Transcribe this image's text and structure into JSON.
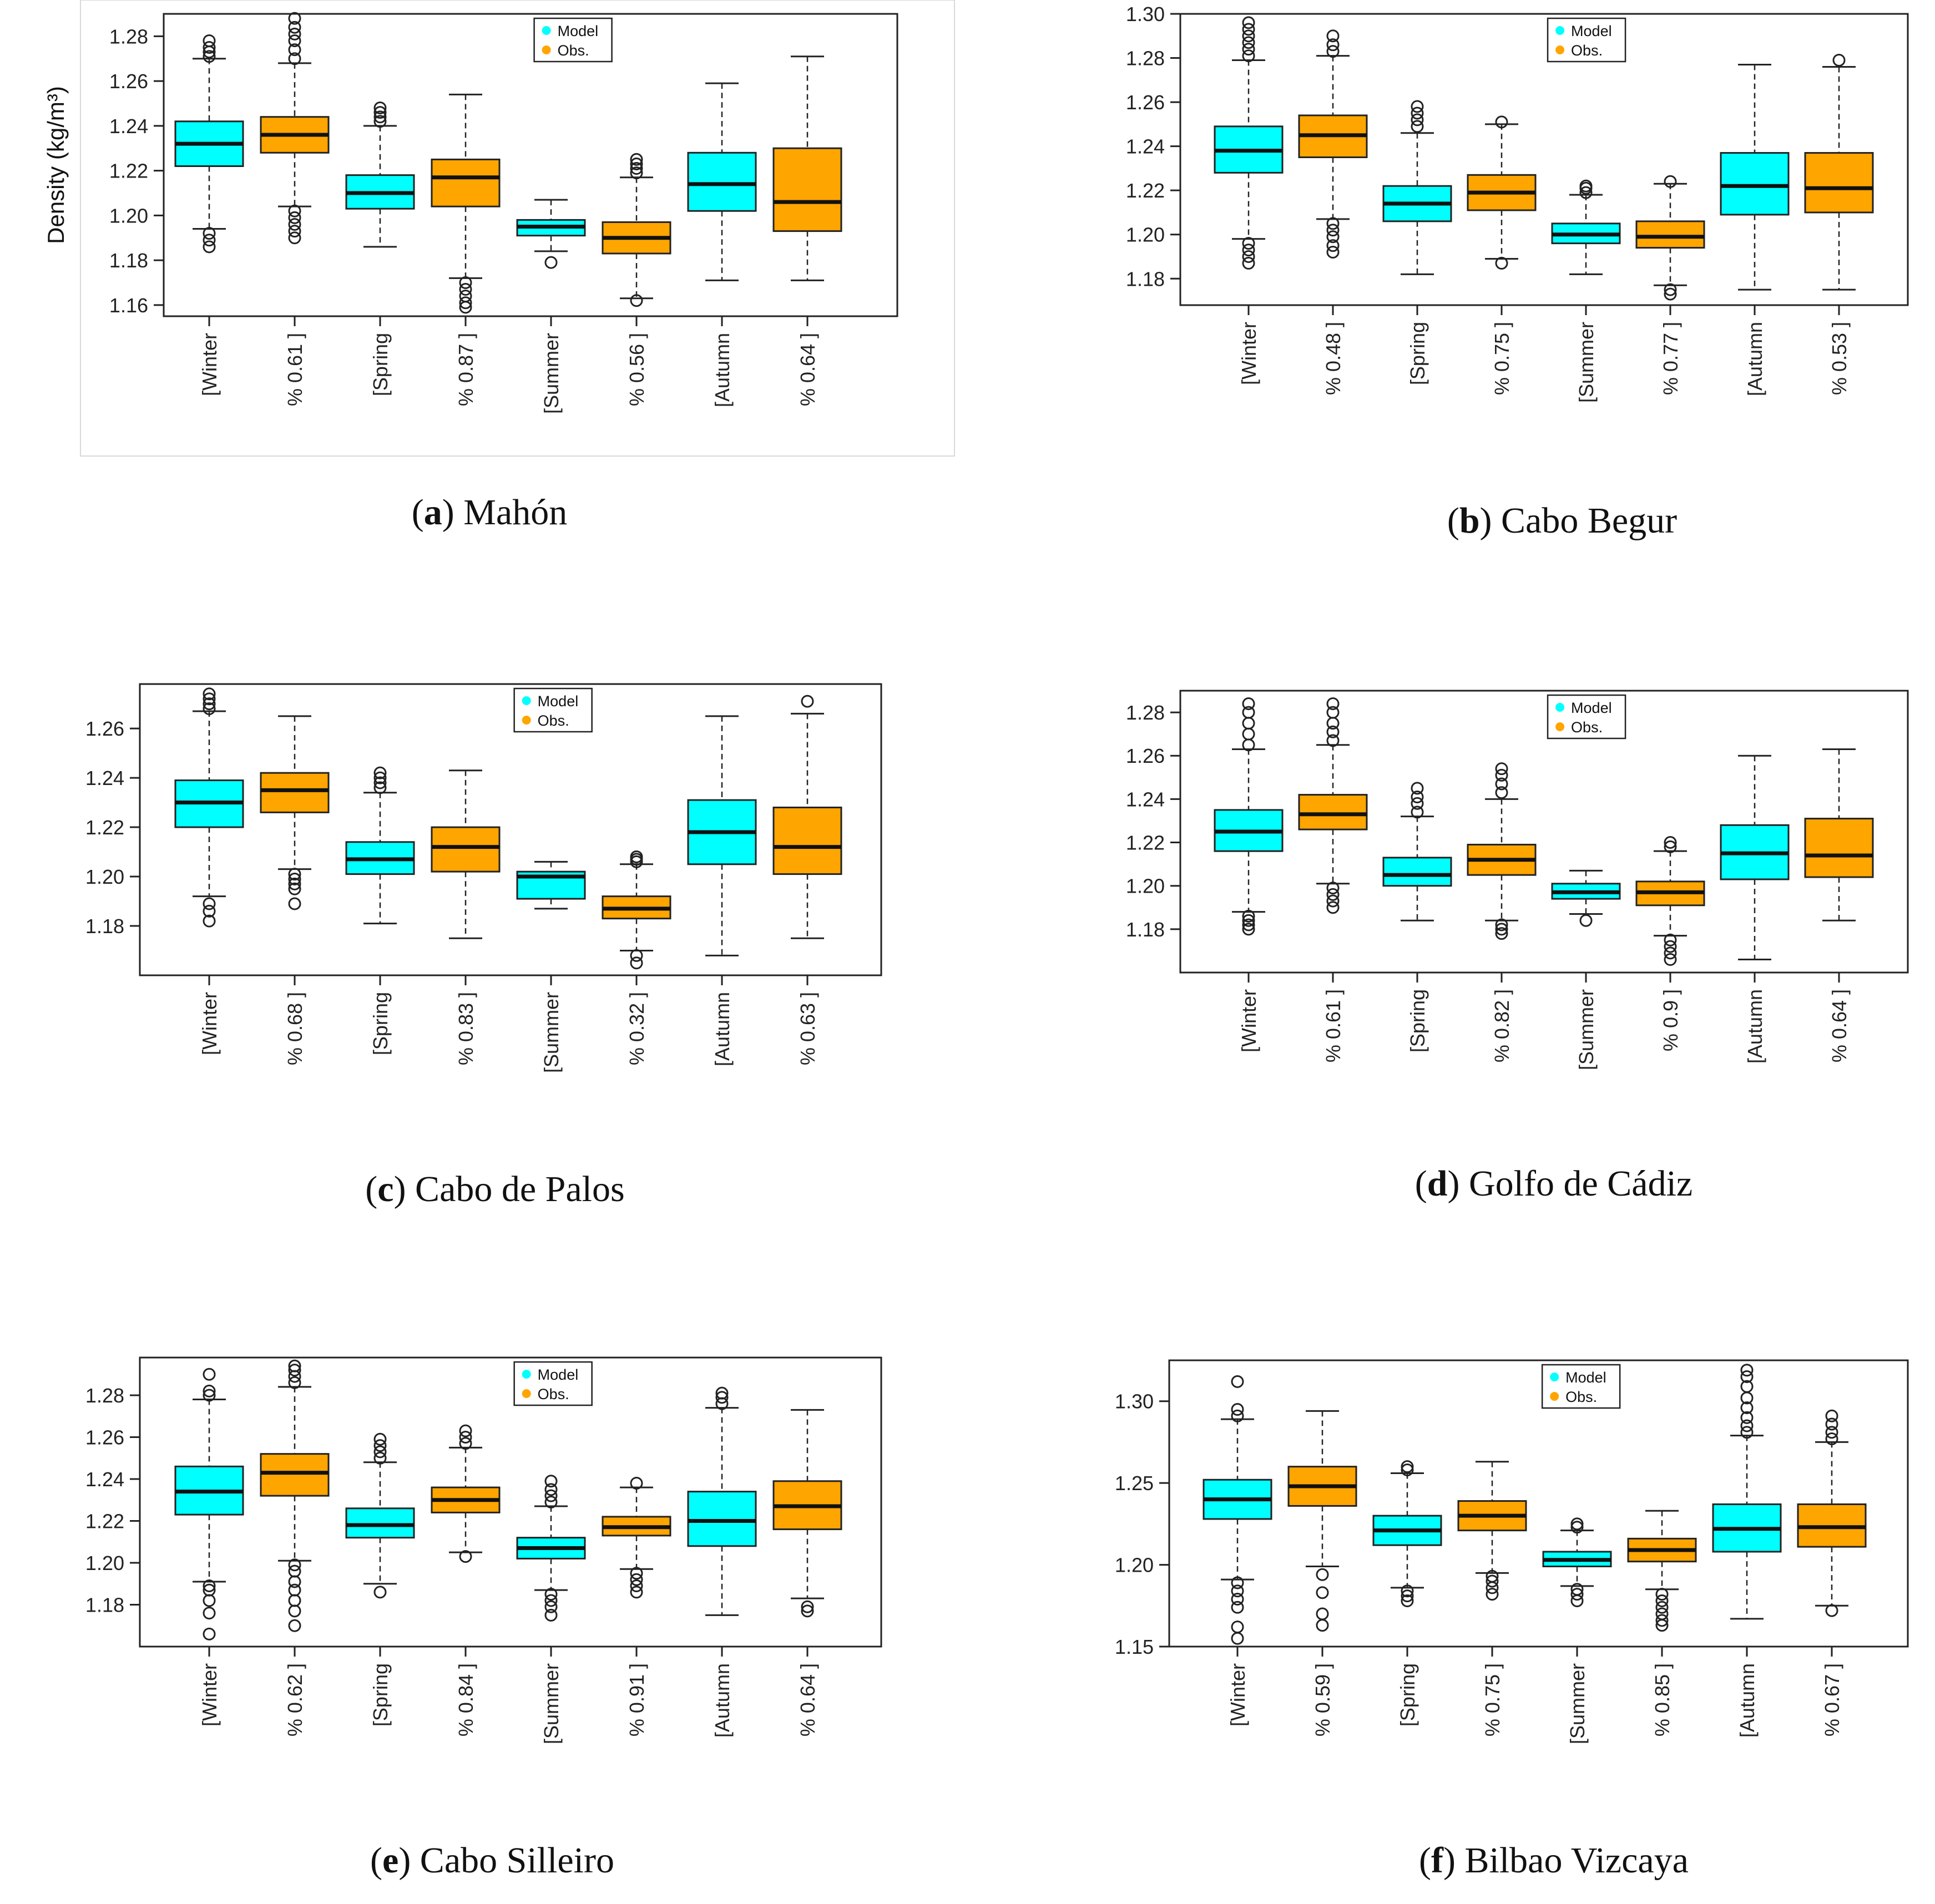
{
  "chart_data": [
    {
      "type": "boxplot",
      "panel_label": "a",
      "caption": "Mahón",
      "ylabel": "Density (kg/m³)",
      "yticks": [
        "1.16",
        "1.18",
        "1.20",
        "1.22",
        "1.24",
        "1.26",
        "1.28"
      ],
      "ylim": [
        1.155,
        1.29
      ],
      "categories": [
        "[Winter",
        "% 0.61 ]",
        "[Spring",
        "% 0.87 ]",
        "[Summer",
        "% 0.56 ]",
        "[Autumn",
        "% 0.64 ]"
      ],
      "legend": [
        "Model",
        "Obs."
      ],
      "colors": {
        "model": "#00FFFF",
        "obs": "#FFA500"
      },
      "boxes": [
        {
          "series": "Model",
          "min": 1.194,
          "q1": 1.222,
          "median": 1.232,
          "q3": 1.242,
          "max": 1.27,
          "outliers": [
            1.192,
            1.189,
            1.186,
            1.271,
            1.273,
            1.275,
            1.278
          ]
        },
        {
          "series": "Obs.",
          "min": 1.204,
          "q1": 1.228,
          "median": 1.236,
          "q3": 1.244,
          "max": 1.268,
          "outliers": [
            1.202,
            1.199,
            1.196,
            1.193,
            1.19,
            1.27,
            1.274,
            1.278,
            1.281,
            1.284,
            1.288
          ]
        },
        {
          "series": "Model",
          "min": 1.186,
          "q1": 1.203,
          "median": 1.21,
          "q3": 1.218,
          "max": 1.24,
          "outliers": [
            1.242,
            1.244,
            1.246,
            1.248
          ]
        },
        {
          "series": "Obs.",
          "min": 1.172,
          "q1": 1.204,
          "median": 1.217,
          "q3": 1.225,
          "max": 1.254,
          "outliers": [
            1.17,
            1.167,
            1.164,
            1.161,
            1.159
          ]
        },
        {
          "series": "Model",
          "min": 1.184,
          "q1": 1.191,
          "median": 1.195,
          "q3": 1.198,
          "max": 1.207,
          "outliers": [
            1.179
          ]
        },
        {
          "series": "Obs.",
          "min": 1.163,
          "q1": 1.183,
          "median": 1.19,
          "q3": 1.197,
          "max": 1.217,
          "outliers": [
            1.162,
            1.219,
            1.221,
            1.223,
            1.225
          ]
        },
        {
          "series": "Model",
          "min": 1.171,
          "q1": 1.202,
          "median": 1.214,
          "q3": 1.228,
          "max": 1.259,
          "outliers": []
        },
        {
          "series": "Obs.",
          "min": 1.171,
          "q1": 1.193,
          "median": 1.206,
          "q3": 1.23,
          "max": 1.271,
          "outliers": []
        }
      ]
    },
    {
      "type": "boxplot",
      "panel_label": "b",
      "caption": "Cabo Begur",
      "ylabel": "",
      "yticks": [
        "1.18",
        "1.20",
        "1.22",
        "1.24",
        "1.26",
        "1.28",
        "1.30"
      ],
      "ylim": [
        1.168,
        1.3
      ],
      "categories": [
        "[Winter",
        "% 0.48 ]",
        "[Spring",
        "% 0.75 ]",
        "[Summer",
        "% 0.77 ]",
        "[Autumn",
        "% 0.53 ]"
      ],
      "legend": [
        "Model",
        "Obs."
      ],
      "colors": {
        "model": "#00FFFF",
        "obs": "#FFA500"
      },
      "boxes": [
        {
          "series": "Model",
          "min": 1.198,
          "q1": 1.228,
          "median": 1.238,
          "q3": 1.249,
          "max": 1.279,
          "outliers": [
            1.196,
            1.193,
            1.19,
            1.187,
            1.281,
            1.284,
            1.287,
            1.29,
            1.293,
            1.296
          ]
        },
        {
          "series": "Obs.",
          "min": 1.207,
          "q1": 1.235,
          "median": 1.245,
          "q3": 1.254,
          "max": 1.281,
          "outliers": [
            1.205,
            1.202,
            1.199,
            1.195,
            1.192,
            1.283,
            1.286,
            1.29
          ]
        },
        {
          "series": "Model",
          "min": 1.182,
          "q1": 1.206,
          "median": 1.214,
          "q3": 1.222,
          "max": 1.246,
          "outliers": [
            1.249,
            1.252,
            1.255,
            1.258
          ]
        },
        {
          "series": "Obs.",
          "min": 1.189,
          "q1": 1.211,
          "median": 1.219,
          "q3": 1.227,
          "max": 1.25,
          "outliers": [
            1.187,
            1.251
          ]
        },
        {
          "series": "Model",
          "min": 1.182,
          "q1": 1.196,
          "median": 1.2,
          "q3": 1.205,
          "max": 1.218,
          "outliers": [
            1.219,
            1.221,
            1.222
          ]
        },
        {
          "series": "Obs.",
          "min": 1.177,
          "q1": 1.194,
          "median": 1.199,
          "q3": 1.206,
          "max": 1.223,
          "outliers": [
            1.175,
            1.173,
            1.224
          ]
        },
        {
          "series": "Model",
          "min": 1.175,
          "q1": 1.209,
          "median": 1.222,
          "q3": 1.237,
          "max": 1.277,
          "outliers": []
        },
        {
          "series": "Obs.",
          "min": 1.175,
          "q1": 1.21,
          "median": 1.221,
          "q3": 1.237,
          "max": 1.276,
          "outliers": [
            1.279
          ]
        }
      ]
    },
    {
      "type": "boxplot",
      "panel_label": "c",
      "caption": "Cabo de Palos",
      "ylabel": "",
      "yticks": [
        "1.18",
        "1.20",
        "1.22",
        "1.24",
        "1.26"
      ],
      "ylim": [
        1.16,
        1.278
      ],
      "categories": [
        "[Winter",
        "% 0.68 ]",
        "[Spring",
        "% 0.83 ]",
        "[Summer",
        "% 0.32 ]",
        "[Autumn",
        "% 0.63 ]"
      ],
      "legend": [
        "Model",
        "Obs."
      ],
      "colors": {
        "model": "#00FFFF",
        "obs": "#FFA500"
      },
      "boxes": [
        {
          "series": "Model",
          "min": 1.192,
          "q1": 1.22,
          "median": 1.23,
          "q3": 1.239,
          "max": 1.267,
          "outliers": [
            1.189,
            1.186,
            1.182,
            1.268,
            1.27,
            1.272,
            1.274
          ]
        },
        {
          "series": "Obs.",
          "min": 1.203,
          "q1": 1.226,
          "median": 1.235,
          "q3": 1.242,
          "max": 1.265,
          "outliers": [
            1.201,
            1.199,
            1.197,
            1.195,
            1.189
          ]
        },
        {
          "series": "Model",
          "min": 1.181,
          "q1": 1.201,
          "median": 1.207,
          "q3": 1.214,
          "max": 1.234,
          "outliers": [
            1.236,
            1.238,
            1.24,
            1.242
          ]
        },
        {
          "series": "Obs.",
          "min": 1.175,
          "q1": 1.202,
          "median": 1.212,
          "q3": 1.22,
          "max": 1.243,
          "outliers": []
        },
        {
          "series": "Model",
          "min": 1.187,
          "q1": 1.191,
          "median": 1.2,
          "q3": 1.202,
          "max": 1.206,
          "outliers": []
        },
        {
          "series": "Obs.",
          "min": 1.17,
          "q1": 1.183,
          "median": 1.187,
          "q3": 1.192,
          "max": 1.205,
          "outliers": [
            1.168,
            1.165,
            1.206,
            1.207,
            1.208
          ]
        },
        {
          "series": "Model",
          "min": 1.168,
          "q1": 1.205,
          "median": 1.218,
          "q3": 1.231,
          "max": 1.265,
          "outliers": []
        },
        {
          "series": "Obs.",
          "min": 1.175,
          "q1": 1.201,
          "median": 1.212,
          "q3": 1.228,
          "max": 1.266,
          "outliers": [
            1.271
          ]
        }
      ]
    },
    {
      "type": "boxplot",
      "panel_label": "d",
      "caption": "Golfo de Cádiz",
      "ylabel": "",
      "yticks": [
        "1.18",
        "1.20",
        "1.22",
        "1.24",
        "1.26",
        "1.28"
      ],
      "ylim": [
        1.16,
        1.29
      ],
      "categories": [
        "[Winter",
        "% 0.61 ]",
        "[Spring",
        "% 0.82 ]",
        "[Summer",
        "% 0.9 ]",
        "[Autumn",
        "% 0.64 ]"
      ],
      "legend": [
        "Model",
        "Obs."
      ],
      "colors": {
        "model": "#00FFFF",
        "obs": "#FFA500"
      },
      "boxes": [
        {
          "series": "Model",
          "min": 1.188,
          "q1": 1.216,
          "median": 1.225,
          "q3": 1.235,
          "max": 1.263,
          "outliers": [
            1.186,
            1.184,
            1.182,
            1.18,
            1.265,
            1.27,
            1.275,
            1.28,
            1.284
          ]
        },
        {
          "series": "Obs.",
          "min": 1.201,
          "q1": 1.226,
          "median": 1.233,
          "q3": 1.242,
          "max": 1.265,
          "outliers": [
            1.199,
            1.196,
            1.193,
            1.19,
            1.267,
            1.271,
            1.275,
            1.28,
            1.284
          ]
        },
        {
          "series": "Model",
          "min": 1.184,
          "q1": 1.2,
          "median": 1.205,
          "q3": 1.213,
          "max": 1.232,
          "outliers": [
            1.234,
            1.238,
            1.241,
            1.245
          ]
        },
        {
          "series": "Obs.",
          "min": 1.184,
          "q1": 1.205,
          "median": 1.212,
          "q3": 1.219,
          "max": 1.24,
          "outliers": [
            1.182,
            1.18,
            1.178,
            1.243,
            1.247,
            1.251,
            1.254
          ]
        },
        {
          "series": "Model",
          "min": 1.187,
          "q1": 1.194,
          "median": 1.197,
          "q3": 1.201,
          "max": 1.207,
          "outliers": [
            1.184
          ]
        },
        {
          "series": "Obs.",
          "min": 1.177,
          "q1": 1.191,
          "median": 1.197,
          "q3": 1.202,
          "max": 1.216,
          "outliers": [
            1.175,
            1.172,
            1.169,
            1.166,
            1.218,
            1.22
          ]
        },
        {
          "series": "Model",
          "min": 1.166,
          "q1": 1.203,
          "median": 1.215,
          "q3": 1.228,
          "max": 1.26,
          "outliers": []
        },
        {
          "series": "Obs.",
          "min": 1.184,
          "q1": 1.204,
          "median": 1.214,
          "q3": 1.231,
          "max": 1.263,
          "outliers": []
        }
      ]
    },
    {
      "type": "boxplot",
      "panel_label": "e",
      "caption": "Cabo Silleiro",
      "ylabel": "",
      "yticks": [
        "1.18",
        "1.20",
        "1.22",
        "1.24",
        "1.26",
        "1.28"
      ],
      "ylim": [
        1.16,
        1.298
      ],
      "categories": [
        "[Winter",
        "% 0.62 ]",
        "[Spring",
        "% 0.84 ]",
        "[Summer",
        "% 0.91 ]",
        "[Autumn",
        "% 0.64 ]"
      ],
      "legend": [
        "Model",
        "Obs."
      ],
      "colors": {
        "model": "#00FFFF",
        "obs": "#FFA500"
      },
      "boxes": [
        {
          "series": "Model",
          "min": 1.191,
          "q1": 1.223,
          "median": 1.234,
          "q3": 1.246,
          "max": 1.278,
          "outliers": [
            1.189,
            1.187,
            1.182,
            1.176,
            1.166,
            1.28,
            1.282,
            1.29
          ]
        },
        {
          "series": "Obs.",
          "min": 1.201,
          "q1": 1.232,
          "median": 1.243,
          "q3": 1.252,
          "max": 1.284,
          "outliers": [
            1.199,
            1.196,
            1.191,
            1.187,
            1.182,
            1.177,
            1.17,
            1.286,
            1.289,
            1.292,
            1.294
          ]
        },
        {
          "series": "Model",
          "min": 1.19,
          "q1": 1.212,
          "median": 1.218,
          "q3": 1.226,
          "max": 1.248,
          "outliers": [
            1.186,
            1.25,
            1.253,
            1.256,
            1.259
          ]
        },
        {
          "series": "Obs.",
          "min": 1.205,
          "q1": 1.224,
          "median": 1.23,
          "q3": 1.236,
          "max": 1.255,
          "outliers": [
            1.203,
            1.257,
            1.26,
            1.263
          ]
        },
        {
          "series": "Model",
          "min": 1.187,
          "q1": 1.202,
          "median": 1.207,
          "q3": 1.212,
          "max": 1.227,
          "outliers": [
            1.185,
            1.182,
            1.179,
            1.175,
            1.229,
            1.232,
            1.235,
            1.239
          ]
        },
        {
          "series": "Obs.",
          "min": 1.197,
          "q1": 1.213,
          "median": 1.217,
          "q3": 1.222,
          "max": 1.236,
          "outliers": [
            1.195,
            1.192,
            1.189,
            1.186,
            1.238
          ]
        },
        {
          "series": "Model",
          "min": 1.175,
          "q1": 1.208,
          "median": 1.22,
          "q3": 1.234,
          "max": 1.274,
          "outliers": [
            1.276,
            1.279,
            1.281
          ]
        },
        {
          "series": "Obs.",
          "min": 1.183,
          "q1": 1.216,
          "median": 1.227,
          "q3": 1.239,
          "max": 1.273,
          "outliers": [
            1.179,
            1.177
          ]
        }
      ]
    },
    {
      "type": "boxplot",
      "panel_label": "f",
      "caption": "Bilbao Vizcaya",
      "ylabel": "",
      "yticks": [
        "1.15",
        "1.20",
        "1.25",
        "1.30"
      ],
      "ylim": [
        1.15,
        1.325
      ],
      "categories": [
        "[Winter",
        "% 0.59 ]",
        "[Spring",
        "% 0.75 ]",
        "[Summer",
        "% 0.85 ]",
        "[Autumn",
        "% 0.67 ]"
      ],
      "legend": [
        "Model",
        "Obs."
      ],
      "colors": {
        "model": "#00FFFF",
        "obs": "#FFA500"
      },
      "boxes": [
        {
          "series": "Model",
          "min": 1.191,
          "q1": 1.228,
          "median": 1.24,
          "q3": 1.252,
          "max": 1.289,
          "outliers": [
            1.189,
            1.184,
            1.179,
            1.174,
            1.162,
            1.155,
            1.291,
            1.295,
            1.312
          ]
        },
        {
          "series": "Obs.",
          "min": 1.199,
          "q1": 1.236,
          "median": 1.248,
          "q3": 1.26,
          "max": 1.294,
          "outliers": [
            1.194,
            1.183,
            1.17,
            1.163
          ]
        },
        {
          "series": "Model",
          "min": 1.186,
          "q1": 1.212,
          "median": 1.221,
          "q3": 1.23,
          "max": 1.256,
          "outliers": [
            1.184,
            1.181,
            1.178,
            1.258,
            1.26
          ]
        },
        {
          "series": "Obs.",
          "min": 1.195,
          "q1": 1.221,
          "median": 1.23,
          "q3": 1.239,
          "max": 1.263,
          "outliers": [
            1.193,
            1.19,
            1.186,
            1.182
          ]
        },
        {
          "series": "Model",
          "min": 1.187,
          "q1": 1.199,
          "median": 1.203,
          "q3": 1.208,
          "max": 1.221,
          "outliers": [
            1.185,
            1.182,
            1.178,
            1.223,
            1.225
          ]
        },
        {
          "series": "Obs.",
          "min": 1.185,
          "q1": 1.202,
          "median": 1.209,
          "q3": 1.216,
          "max": 1.233,
          "outliers": [
            1.182,
            1.178,
            1.174,
            1.17,
            1.166,
            1.163
          ]
        },
        {
          "series": "Model",
          "min": 1.167,
          "q1": 1.208,
          "median": 1.222,
          "q3": 1.237,
          "max": 1.279,
          "outliers": [
            1.281,
            1.285,
            1.29,
            1.296,
            1.302,
            1.309,
            1.315,
            1.319
          ]
        },
        {
          "series": "Obs.",
          "min": 1.175,
          "q1": 1.211,
          "median": 1.223,
          "q3": 1.237,
          "max": 1.275,
          "outliers": [
            1.172,
            1.277,
            1.281,
            1.286,
            1.291
          ]
        }
      ]
    }
  ]
}
